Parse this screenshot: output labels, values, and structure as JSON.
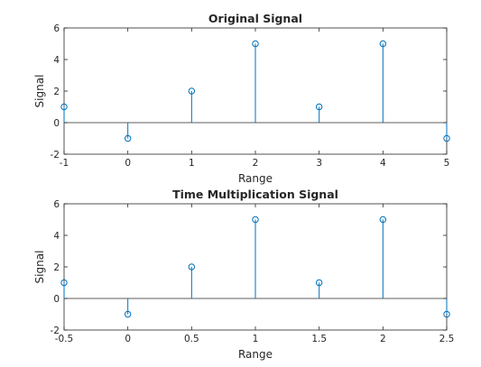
{
  "chart_data": [
    {
      "type": "stem",
      "title": "Original Signal",
      "xlabel": "Range",
      "ylabel": "Signal",
      "x": [
        -1,
        0,
        1,
        2,
        3,
        4,
        5
      ],
      "y": [
        1,
        -1,
        2,
        5,
        1,
        5,
        -1
      ],
      "xlim": [
        -1,
        5
      ],
      "ylim": [
        -2,
        6
      ],
      "xticks": [
        "-1",
        "0",
        "1",
        "2",
        "3",
        "4",
        "5"
      ],
      "yticks": [
        "-2",
        "0",
        "2",
        "4",
        "6"
      ],
      "grid": false,
      "marker": "open-circle",
      "color": "#0072BD"
    },
    {
      "type": "stem",
      "title": "Time Multiplication Signal",
      "xlabel": "Range",
      "ylabel": "Signal",
      "x": [
        -0.5,
        0,
        0.5,
        1,
        1.5,
        2,
        2.5
      ],
      "y": [
        1,
        -1,
        2,
        5,
        1,
        5,
        -1
      ],
      "xlim": [
        -0.5,
        2.5
      ],
      "ylim": [
        -2,
        6
      ],
      "xticks": [
        "-0.5",
        "0",
        "0.5",
        "1",
        "1.5",
        "2",
        "2.5"
      ],
      "yticks": [
        "-2",
        "0",
        "2",
        "4",
        "6"
      ],
      "grid": false,
      "marker": "open-circle",
      "color": "#0072BD"
    }
  ]
}
